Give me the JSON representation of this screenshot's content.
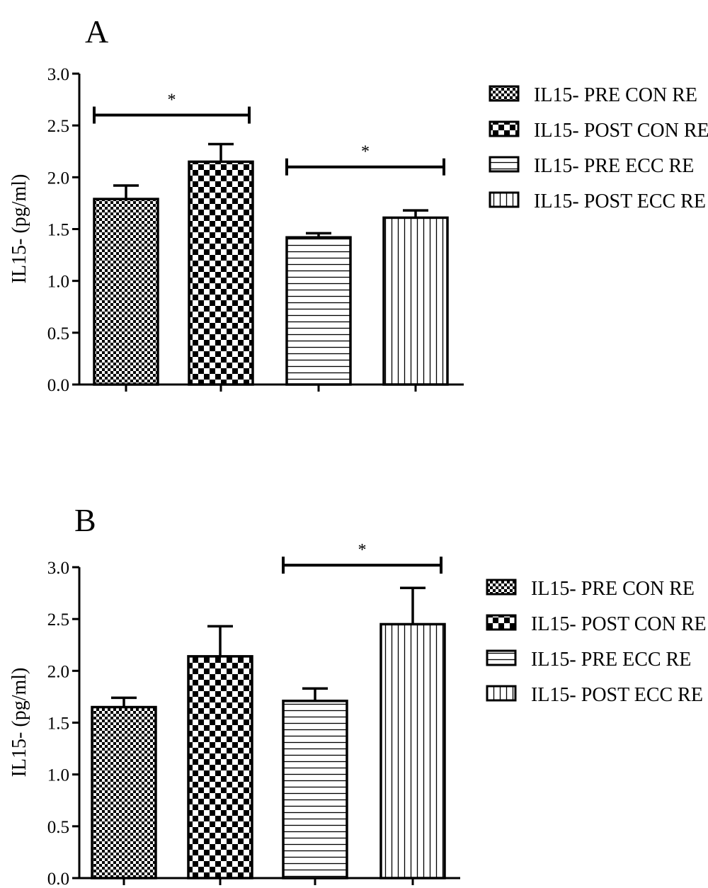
{
  "legend_entries": [
    "IL15- PRE CON RE",
    "IL15- POST CON RE",
    "IL15- PRE ECC RE",
    "IL15- POST ECC RE"
  ],
  "chart_data": [
    {
      "type": "bar",
      "panel_label": "A",
      "title": "",
      "xlabel": "",
      "ylabel": "IL15- (pg/ml)",
      "ylim": [
        0,
        3.0
      ],
      "yticks": [
        "0.0",
        "0.5",
        "1.0",
        "1.5",
        "2.0",
        "2.5",
        "3.0"
      ],
      "grid": false,
      "legend_position": "right",
      "bars": [
        {
          "name": "IL15- PRE CON RE",
          "value": 1.79,
          "error": 0.13,
          "pattern": "fine-checker"
        },
        {
          "name": "IL15- POST CON RE",
          "value": 2.15,
          "error": 0.17,
          "pattern": "coarse-checker"
        },
        {
          "name": "IL15- PRE ECC RE",
          "value": 1.42,
          "error": 0.04,
          "pattern": "horizontal-lines"
        },
        {
          "name": "IL15- POST ECC RE",
          "value": 1.61,
          "error": 0.07,
          "pattern": "vertical-lines"
        }
      ],
      "significance": [
        {
          "from_bar": 0,
          "to_bar": 1,
          "level": 2.6,
          "label": "*"
        },
        {
          "from_bar": 2,
          "to_bar": 3,
          "level": 2.1,
          "label": "*"
        }
      ]
    },
    {
      "type": "bar",
      "panel_label": "B",
      "title": "",
      "xlabel": "",
      "ylabel": "IL15- (pg/ml)",
      "ylim": [
        0,
        3.0
      ],
      "yticks": [
        "0.0",
        "0.5",
        "1.0",
        "1.5",
        "2.0",
        "2.5",
        "3.0"
      ],
      "grid": false,
      "legend_position": "right",
      "bars": [
        {
          "name": "IL15- PRE CON RE",
          "value": 1.65,
          "error": 0.09,
          "pattern": "fine-checker"
        },
        {
          "name": "IL15- POST CON RE",
          "value": 2.14,
          "error": 0.29,
          "pattern": "coarse-checker"
        },
        {
          "name": "IL15- PRE ECC RE",
          "value": 1.71,
          "error": 0.12,
          "pattern": "horizontal-lines"
        },
        {
          "name": "IL15- POST ECC RE",
          "value": 2.45,
          "error": 0.35,
          "pattern": "vertical-lines"
        }
      ],
      "significance": [
        {
          "from_bar": 2,
          "to_bar": 3,
          "level": 3.02,
          "label": "*"
        }
      ]
    }
  ]
}
